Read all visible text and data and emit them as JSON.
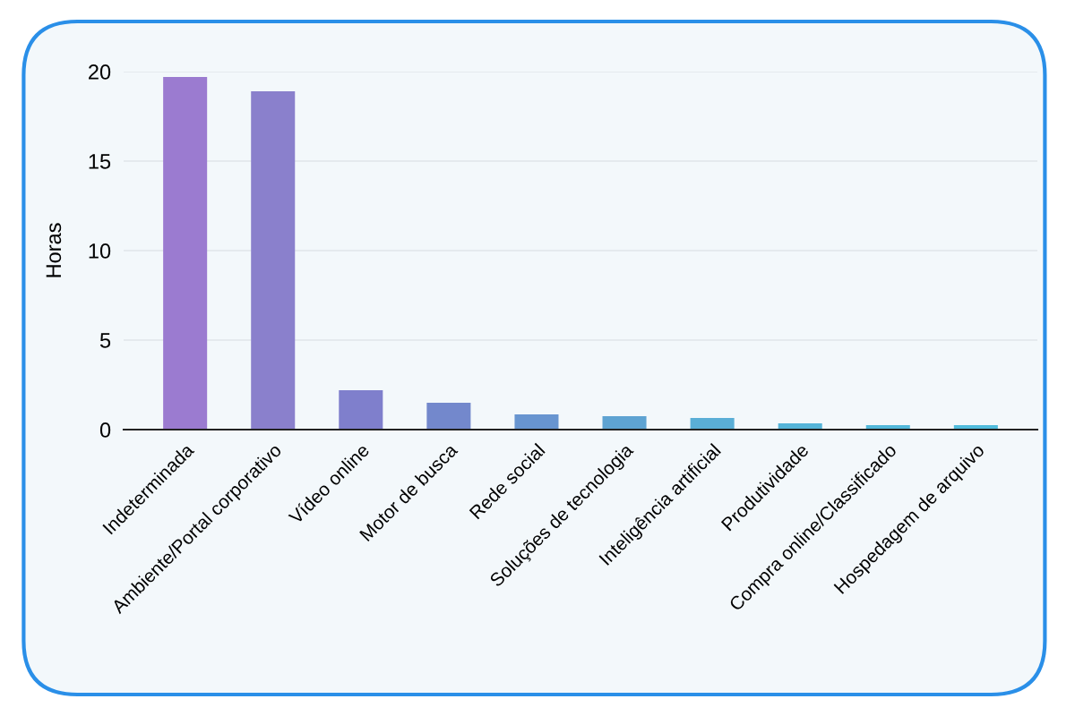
{
  "chart_data": {
    "type": "bar",
    "ylabel": "Horas",
    "categories": [
      "Indeterminada",
      "Ambiente/Portal corporativo",
      "Vídeo online",
      "Motor de busca",
      "Rede social",
      "Soluções de tecnologia",
      "Inteligência artificial",
      "Produtividade",
      "Compra online/Classificado",
      "Hospedagem de arquivo"
    ],
    "values": [
      19.7,
      18.9,
      2.2,
      1.5,
      0.85,
      0.75,
      0.65,
      0.35,
      0.25,
      0.25
    ],
    "colors": [
      "#9b7bd0",
      "#8a80cc",
      "#7f7fcc",
      "#7388cc",
      "#6895d0",
      "#5ea3d2",
      "#5aaed6",
      "#55b4d8",
      "#52b8da",
      "#50bcdc"
    ],
    "ylim": [
      0,
      20
    ],
    "yticks": [
      0,
      5,
      10,
      15,
      20
    ],
    "grid": "y",
    "legend": false
  }
}
